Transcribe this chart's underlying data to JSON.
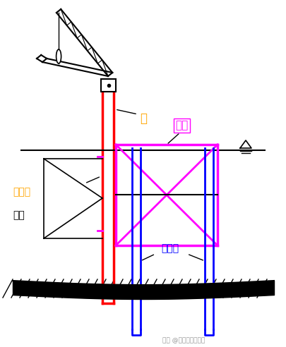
{
  "bg_color": "#ffffff",
  "black": "#000000",
  "red": "#ff0000",
  "blue": "#0000ff",
  "magenta": "#ff00ff",
  "orange": "#ffa500",
  "gray_wm": "#999999",
  "text_zhuang": "栦",
  "text_gangbanzhuang": "钒板栦",
  "text_weidu": "围图",
  "text_daohuan": "导环",
  "text_dingweizhuang": "定位栦",
  "text_watermark": "头条 @建筑工程一点通",
  "fig_w": 4.05,
  "fig_h": 4.92,
  "dpi": 100
}
